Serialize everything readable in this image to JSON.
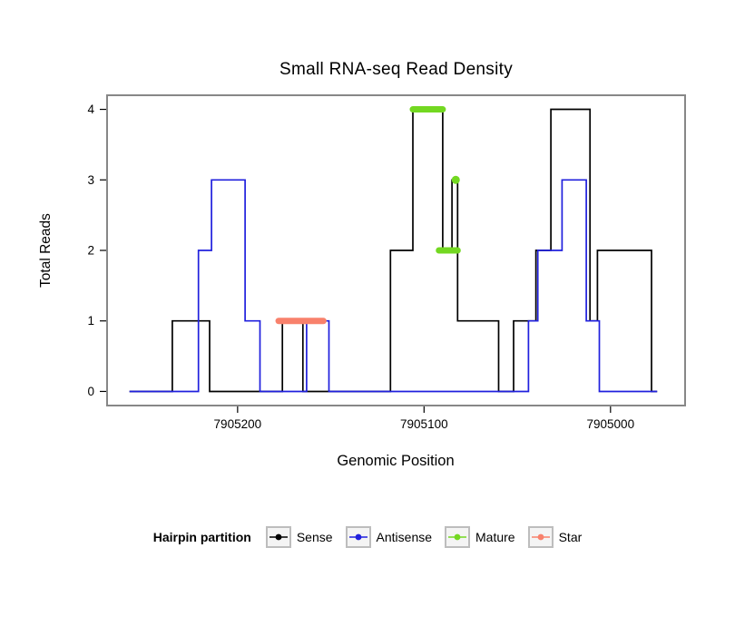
{
  "title": "Small RNA-seq Read Density",
  "axes": {
    "x_label": "Genomic Position",
    "y_label": "Total Reads"
  },
  "legend": {
    "title": "Hairpin partition",
    "items": [
      {
        "label": "Sense",
        "color": "#000000"
      },
      {
        "label": "Antisense",
        "color": "#2020dd"
      },
      {
        "label": "Mature",
        "color": "#73d821"
      },
      {
        "label": "Star",
        "color": "#f8816c"
      }
    ]
  },
  "chart_data": {
    "type": "line",
    "step": true,
    "title": "Small RNA-seq Read Density",
    "xlabel": "Genomic Position",
    "ylabel": "Total Reads",
    "xlim": [
      7905270,
      7904960
    ],
    "x_reversed": true,
    "ylim": [
      -0.2,
      4.2
    ],
    "xticks": [
      7905200,
      7905100,
      7905000
    ],
    "yticks": [
      0,
      1,
      2,
      3,
      4
    ],
    "grid": false,
    "legend_position": "bottom",
    "series": [
      {
        "name": "Sense",
        "color": "#000000",
        "points": [
          [
            7905258,
            0
          ],
          [
            7905235,
            0
          ],
          [
            7905235,
            1
          ],
          [
            7905215,
            1
          ],
          [
            7905215,
            0
          ],
          [
            7905176,
            0
          ],
          [
            7905176,
            1
          ],
          [
            7905165,
            1
          ],
          [
            7905165,
            0
          ],
          [
            7905118,
            0
          ],
          [
            7905118,
            2
          ],
          [
            7905106,
            2
          ],
          [
            7905106,
            4
          ],
          [
            7905090,
            4
          ],
          [
            7905090,
            2
          ],
          [
            7905085,
            2
          ],
          [
            7905085,
            3
          ],
          [
            7905082,
            3
          ],
          [
            7905082,
            1
          ],
          [
            7905060,
            1
          ],
          [
            7905060,
            0
          ],
          [
            7905052,
            0
          ],
          [
            7905052,
            1
          ],
          [
            7905040,
            1
          ],
          [
            7905040,
            2
          ],
          [
            7905032,
            2
          ],
          [
            7905032,
            4
          ],
          [
            7905011,
            4
          ],
          [
            7905011,
            1
          ],
          [
            7905007,
            1
          ],
          [
            7905007,
            2
          ],
          [
            7904978,
            2
          ],
          [
            7904978,
            0
          ],
          [
            7904975,
            0
          ]
        ]
      },
      {
        "name": "Antisense",
        "color": "#2020dd",
        "points": [
          [
            7905258,
            0
          ],
          [
            7905221,
            0
          ],
          [
            7905221,
            2
          ],
          [
            7905214,
            2
          ],
          [
            7905214,
            3
          ],
          [
            7905196,
            3
          ],
          [
            7905196,
            1
          ],
          [
            7905188,
            1
          ],
          [
            7905188,
            0
          ],
          [
            7905163,
            0
          ],
          [
            7905163,
            1
          ],
          [
            7905151,
            1
          ],
          [
            7905151,
            0
          ],
          [
            7905044,
            0
          ],
          [
            7905044,
            1
          ],
          [
            7905039,
            1
          ],
          [
            7905039,
            2
          ],
          [
            7905026,
            2
          ],
          [
            7905026,
            3
          ],
          [
            7905013,
            3
          ],
          [
            7905013,
            1
          ],
          [
            7905006,
            1
          ],
          [
            7905006,
            0
          ],
          [
            7904975,
            0
          ]
        ]
      }
    ],
    "annotations": [
      {
        "name": "Mature",
        "color": "#73d821",
        "segments": [
          {
            "y": 4,
            "x_from": 7905106,
            "x_to": 7905090
          },
          {
            "y": 2,
            "x_from": 7905092,
            "x_to": 7905082
          }
        ],
        "points": [
          {
            "x": 7905083,
            "y": 3
          }
        ]
      },
      {
        "name": "Star",
        "color": "#f8816c",
        "segments": [
          {
            "y": 1,
            "x_from": 7905178,
            "x_to": 7905154
          }
        ],
        "points": []
      }
    ]
  }
}
